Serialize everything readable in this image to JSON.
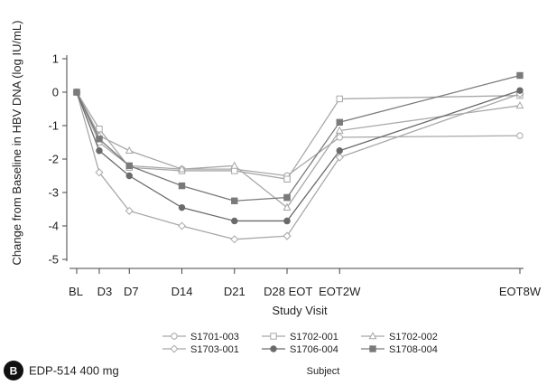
{
  "chart_data": {
    "type": "line",
    "ylabel": "Change from Baseline in HBV DNA (log IU/mL)",
    "xlabel": "Study Visit",
    "categories": [
      "BL",
      "D3",
      "D7",
      "D14",
      "D21",
      "D28",
      "EOT",
      "EOT2W",
      "EOT8W"
    ],
    "x_positions_days": [
      0,
      3,
      7,
      14,
      21,
      28,
      28,
      35,
      59
    ],
    "ylim": [
      -5,
      1
    ],
    "yticks": [
      1,
      0,
      -1,
      -2,
      -3,
      -4,
      -5
    ],
    "grid": false,
    "legend_title": "Subject",
    "legend_position": "bottom",
    "series": [
      {
        "name": "S1701-003",
        "marker": "circle-open",
        "color": "#a8a8a8",
        "values": [
          0,
          -1.5,
          -2.2,
          -2.3,
          -2.3,
          -2.5,
          -2.5,
          -1.35,
          -1.3
        ]
      },
      {
        "name": "S1702-001",
        "marker": "square-open",
        "color": "#a8a8a8",
        "values": [
          0,
          -1.1,
          -2.25,
          -2.35,
          -2.35,
          -2.6,
          -2.6,
          -0.2,
          -0.1
        ]
      },
      {
        "name": "S1702-002",
        "marker": "triangle-open",
        "color": "#a8a8a8",
        "values": [
          0,
          -1.3,
          -1.75,
          -2.3,
          -2.2,
          -3.45,
          -3.45,
          -1.15,
          -0.4
        ]
      },
      {
        "name": "S1703-001",
        "marker": "diamond-open",
        "color": "#a8a8a8",
        "values": [
          0,
          -2.4,
          -3.55,
          -4.0,
          -4.4,
          -4.3,
          -4.3,
          -1.95,
          -0.05
        ]
      },
      {
        "name": "S1706-004",
        "marker": "circle-filled",
        "color": "#6a6a6a",
        "values": [
          0,
          -1.75,
          -2.5,
          -3.45,
          -3.85,
          -3.85,
          -3.85,
          -1.75,
          0.05
        ]
      },
      {
        "name": "S1708-004",
        "marker": "square-filled",
        "color": "#7a7a7a",
        "values": [
          0,
          -1.4,
          -2.2,
          -2.8,
          -3.25,
          -3.15,
          -3.15,
          -0.9,
          0.5
        ]
      }
    ]
  },
  "panel": {
    "badge": "B",
    "caption": "EDP-514 400 mg"
  }
}
